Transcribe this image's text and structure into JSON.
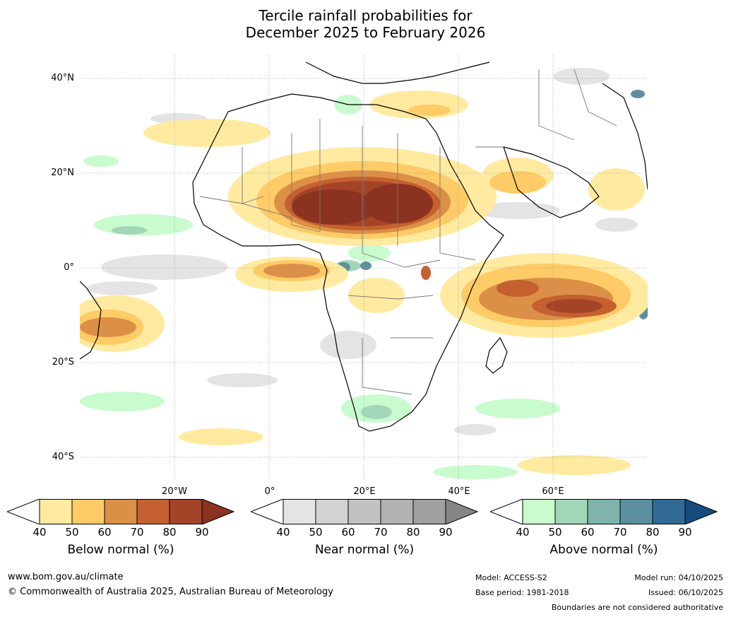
{
  "title": {
    "line1": "Tercile rainfall probabilities for",
    "line2": "December 2025 to February 2026"
  },
  "map": {
    "lat_labels": [
      "40°N",
      "20°N",
      "0°",
      "20°S",
      "40°S"
    ],
    "lon_labels": [
      "20°W",
      "0°",
      "20°E",
      "40°E",
      "60°E"
    ]
  },
  "colorbars": [
    {
      "title": "Below normal (%)",
      "ticks": [
        "40",
        "50",
        "60",
        "70",
        "80",
        "90"
      ],
      "colors": [
        "#ffffff",
        "#ffeaa0",
        "#fecb66",
        "#dc8f46",
        "#c5602f",
        "#a34428",
        "#8b3220"
      ]
    },
    {
      "title": "Near normal (%)",
      "ticks": [
        "40",
        "50",
        "60",
        "70",
        "80",
        "90"
      ],
      "colors": [
        "#ffffff",
        "#e4e4e4",
        "#d2d2d2",
        "#c2c2c2",
        "#b2b2b2",
        "#a0a0a0",
        "#858585"
      ]
    },
    {
      "title": "Above normal (%)",
      "ticks": [
        "40",
        "50",
        "60",
        "70",
        "80",
        "90"
      ],
      "colors": [
        "#ffffff",
        "#c8fbcd",
        "#a3d6b8",
        "#7fb3ac",
        "#5c8f9f",
        "#326a96",
        "#164b7e"
      ]
    }
  ],
  "footer": {
    "website": "www.bom.gov.au/climate",
    "copyright": "© Commonwealth of Australia 2025, Australian Bureau of Meteorology",
    "model": "Model: ACCESS-S2",
    "base_period": "Base period: 1981-2018",
    "model_run": "Model run: 04/10/2025",
    "issued": "Issued: 06/10/2025",
    "disclaimer": "Boundaries are not considered authoritative"
  }
}
